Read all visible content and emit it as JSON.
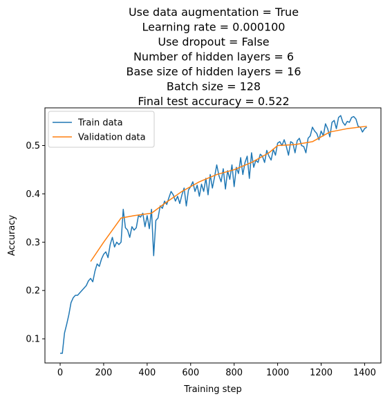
{
  "chart_data": {
    "type": "line",
    "title_lines": [
      "Use data augmentation = True",
      "Learning rate = 0.000100",
      "Use dropout = False",
      "Number of hidden layers = 6",
      "Base size of hidden layers = 16",
      "Batch size = 128",
      "Final test accuracy = 0.522"
    ],
    "xlabel": "Training step",
    "ylabel": "Accuracy",
    "xlim": [
      -70,
      1475
    ],
    "ylim": [
      0.05,
      0.578
    ],
    "xticks": [
      0,
      200,
      400,
      600,
      800,
      1000,
      1200,
      1400
    ],
    "yticks": [
      0.1,
      0.2,
      0.3,
      0.4,
      0.5
    ],
    "legend_position": "upper-left",
    "series": [
      {
        "name": "Train data",
        "color": "#1f77b4",
        "x": [
          0,
          10,
          20,
          30,
          40,
          50,
          60,
          70,
          80,
          90,
          100,
          110,
          120,
          130,
          140,
          150,
          160,
          170,
          180,
          190,
          200,
          210,
          220,
          230,
          240,
          250,
          260,
          270,
          280,
          290,
          300,
          310,
          320,
          330,
          340,
          350,
          360,
          370,
          380,
          390,
          400,
          410,
          420,
          430,
          440,
          450,
          460,
          470,
          480,
          490,
          500,
          510,
          520,
          530,
          540,
          550,
          560,
          570,
          580,
          590,
          600,
          610,
          620,
          630,
          640,
          650,
          660,
          670,
          680,
          690,
          700,
          710,
          720,
          730,
          740,
          750,
          760,
          770,
          780,
          790,
          800,
          810,
          820,
          830,
          840,
          850,
          860,
          870,
          880,
          890,
          900,
          910,
          920,
          930,
          940,
          950,
          960,
          970,
          980,
          990,
          1000,
          1010,
          1020,
          1030,
          1040,
          1050,
          1060,
          1070,
          1080,
          1090,
          1100,
          1110,
          1120,
          1130,
          1140,
          1150,
          1160,
          1170,
          1180,
          1190,
          1200,
          1210,
          1220,
          1230,
          1240,
          1250,
          1260,
          1270,
          1280,
          1290,
          1300,
          1310,
          1320,
          1330,
          1340,
          1350,
          1360,
          1370,
          1380,
          1390,
          1400,
          1410
        ],
        "y": [
          0.07,
          0.07,
          0.112,
          0.13,
          0.15,
          0.175,
          0.185,
          0.19,
          0.19,
          0.195,
          0.2,
          0.205,
          0.21,
          0.22,
          0.225,
          0.218,
          0.24,
          0.255,
          0.25,
          0.265,
          0.275,
          0.28,
          0.268,
          0.295,
          0.31,
          0.29,
          0.3,
          0.295,
          0.3,
          0.368,
          0.33,
          0.325,
          0.31,
          0.332,
          0.325,
          0.33,
          0.355,
          0.352,
          0.36,
          0.332,
          0.355,
          0.328,
          0.368,
          0.272,
          0.345,
          0.35,
          0.375,
          0.37,
          0.385,
          0.378,
          0.392,
          0.405,
          0.398,
          0.385,
          0.395,
          0.38,
          0.398,
          0.412,
          0.375,
          0.408,
          0.415,
          0.425,
          0.405,
          0.418,
          0.395,
          0.42,
          0.405,
          0.432,
          0.398,
          0.44,
          0.412,
          0.435,
          0.46,
          0.438,
          0.425,
          0.452,
          0.41,
          0.448,
          0.43,
          0.46,
          0.415,
          0.455,
          0.442,
          0.475,
          0.44,
          0.465,
          0.478,
          0.432,
          0.485,
          0.455,
          0.47,
          0.465,
          0.482,
          0.478,
          0.465,
          0.49,
          0.478,
          0.47,
          0.492,
          0.48,
          0.505,
          0.508,
          0.5,
          0.512,
          0.498,
          0.48,
          0.508,
          0.505,
          0.485,
          0.51,
          0.515,
          0.5,
          0.498,
          0.485,
          0.515,
          0.52,
          0.538,
          0.53,
          0.525,
          0.512,
          0.53,
          0.52,
          0.545,
          0.535,
          0.518,
          0.548,
          0.552,
          0.535,
          0.558,
          0.562,
          0.548,
          0.542,
          0.55,
          0.548,
          0.558,
          0.56,
          0.555,
          0.54,
          0.538,
          0.528,
          0.535,
          0.538
        ]
      },
      {
        "name": "Validation data",
        "color": "#ff7f0e",
        "x": [
          140,
          200,
          280,
          340,
          420,
          480,
          560,
          640,
          720,
          800,
          880,
          960,
          1000,
          1080,
          1160,
          1240,
          1320,
          1410
        ],
        "y": [
          0.26,
          0.3,
          0.35,
          0.355,
          0.36,
          0.38,
          0.405,
          0.425,
          0.44,
          0.45,
          0.465,
          0.485,
          0.5,
          0.502,
          0.508,
          0.528,
          0.535,
          0.54
        ]
      }
    ]
  }
}
